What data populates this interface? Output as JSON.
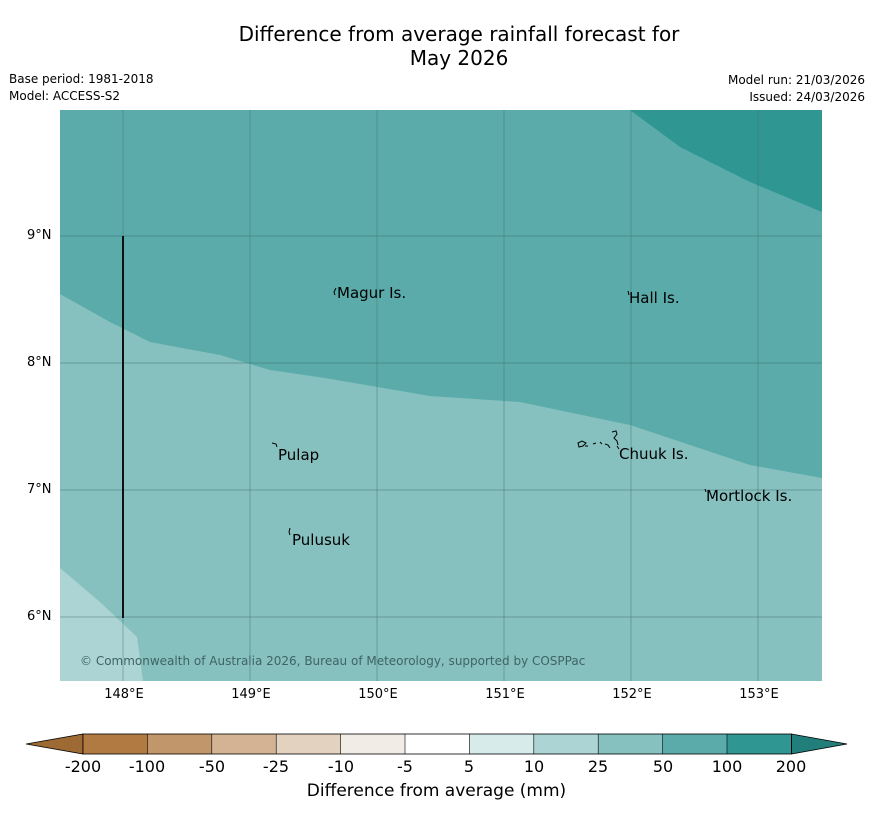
{
  "title": {
    "line1": "Difference from average rainfall forecast for",
    "line2": "May 2026"
  },
  "meta": {
    "base_period": "Base period: 1981-2018",
    "model": "Model: ACCESS-S2",
    "model_run": "Model run: 21/03/2026",
    "issued": "Issued: 24/03/2026"
  },
  "map": {
    "lat_labels": [
      "9°N",
      "8°N",
      "7°N",
      "6°N"
    ],
    "lon_labels": [
      "148°E",
      "149°E",
      "150°E",
      "151°E",
      "152°E",
      "153°E"
    ],
    "places": [
      {
        "name": "Magur Is.",
        "lon": 149.7,
        "lat": 8.55
      },
      {
        "name": "Hall Is.",
        "lon": 152.0,
        "lat": 8.52
      },
      {
        "name": "Pulap",
        "lon": 149.2,
        "lat": 7.28
      },
      {
        "name": "Chuuk Is.",
        "lon": 151.9,
        "lat": 7.28
      },
      {
        "name": "Mortlock Is.",
        "lon": 152.6,
        "lat": 6.95
      },
      {
        "name": "Pulusuk",
        "lon": 149.3,
        "lat": 6.61
      }
    ],
    "copyright": "© Commonwealth of Australia 2026, Bureau of Meteorology, supported by COSPPac"
  },
  "legend": {
    "title": "Difference from average (mm)",
    "ticks": [
      "-200",
      "-100",
      "-50",
      "-25",
      "-10",
      "-5",
      "5",
      "10",
      "25",
      "50",
      "100",
      "200"
    ],
    "colors": [
      "#9e6a33",
      "#b07a42",
      "#c1966a",
      "#d3b393",
      "#e4d2c0",
      "#f1ede6",
      "#ffffff",
      "#d7ebea",
      "#acd4d4",
      "#86c0bf",
      "#5aabaa",
      "#2f9692",
      "#217e7a"
    ]
  }
}
